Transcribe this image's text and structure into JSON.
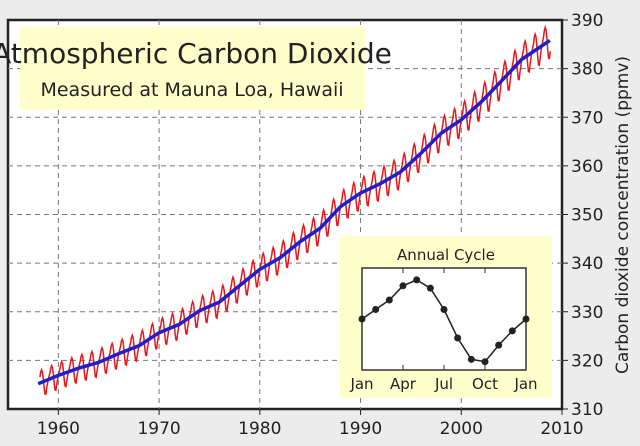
{
  "chart_data": {
    "type": "line",
    "title": "Atmospheric Carbon Dioxide",
    "subtitle": "Measured at Mauna Loa, Hawaii",
    "xlabel": "",
    "ylabel": "Carbon dioxide concentration (ppmv)",
    "xlim": [
      1955,
      2010
    ],
    "ylim": [
      310,
      390
    ],
    "x_ticks": [
      1960,
      1970,
      1980,
      1990,
      2000,
      2010
    ],
    "y_ticks": [
      310,
      320,
      330,
      340,
      350,
      360,
      370,
      380,
      390
    ],
    "grid": true,
    "colors": {
      "monthly": "#e8161b",
      "trend": "#2020c8",
      "box": "#ffffcc"
    },
    "trend": {
      "years": [
        1958,
        1960,
        1962,
        1964,
        1966,
        1968,
        1970,
        1972,
        1974,
        1976,
        1978,
        1980,
        1982,
        1984,
        1986,
        1988,
        1990,
        1992,
        1994,
        1996,
        1998,
        2000,
        2002,
        2004,
        2006,
        2008.8
      ],
      "values": [
        315.2,
        316.9,
        318.4,
        319.6,
        321.4,
        323.0,
        325.7,
        327.4,
        330.2,
        332.0,
        335.4,
        338.7,
        341.1,
        344.4,
        347.2,
        351.6,
        354.4,
        356.4,
        358.8,
        362.6,
        366.7,
        369.5,
        373.2,
        377.5,
        381.9,
        385.8
      ]
    },
    "seasonal_amplitude_ppm": 3.3,
    "inset": {
      "title": "Annual Cycle",
      "x_ticks": [
        "Jan",
        "Apr",
        "Jul",
        "Oct",
        "Jan"
      ],
      "values": [
        0.0,
        0.8,
        1.6,
        2.8,
        3.3,
        2.6,
        0.8,
        -1.6,
        -3.4,
        -3.6,
        -2.2,
        -1.0,
        0.0
      ]
    }
  }
}
